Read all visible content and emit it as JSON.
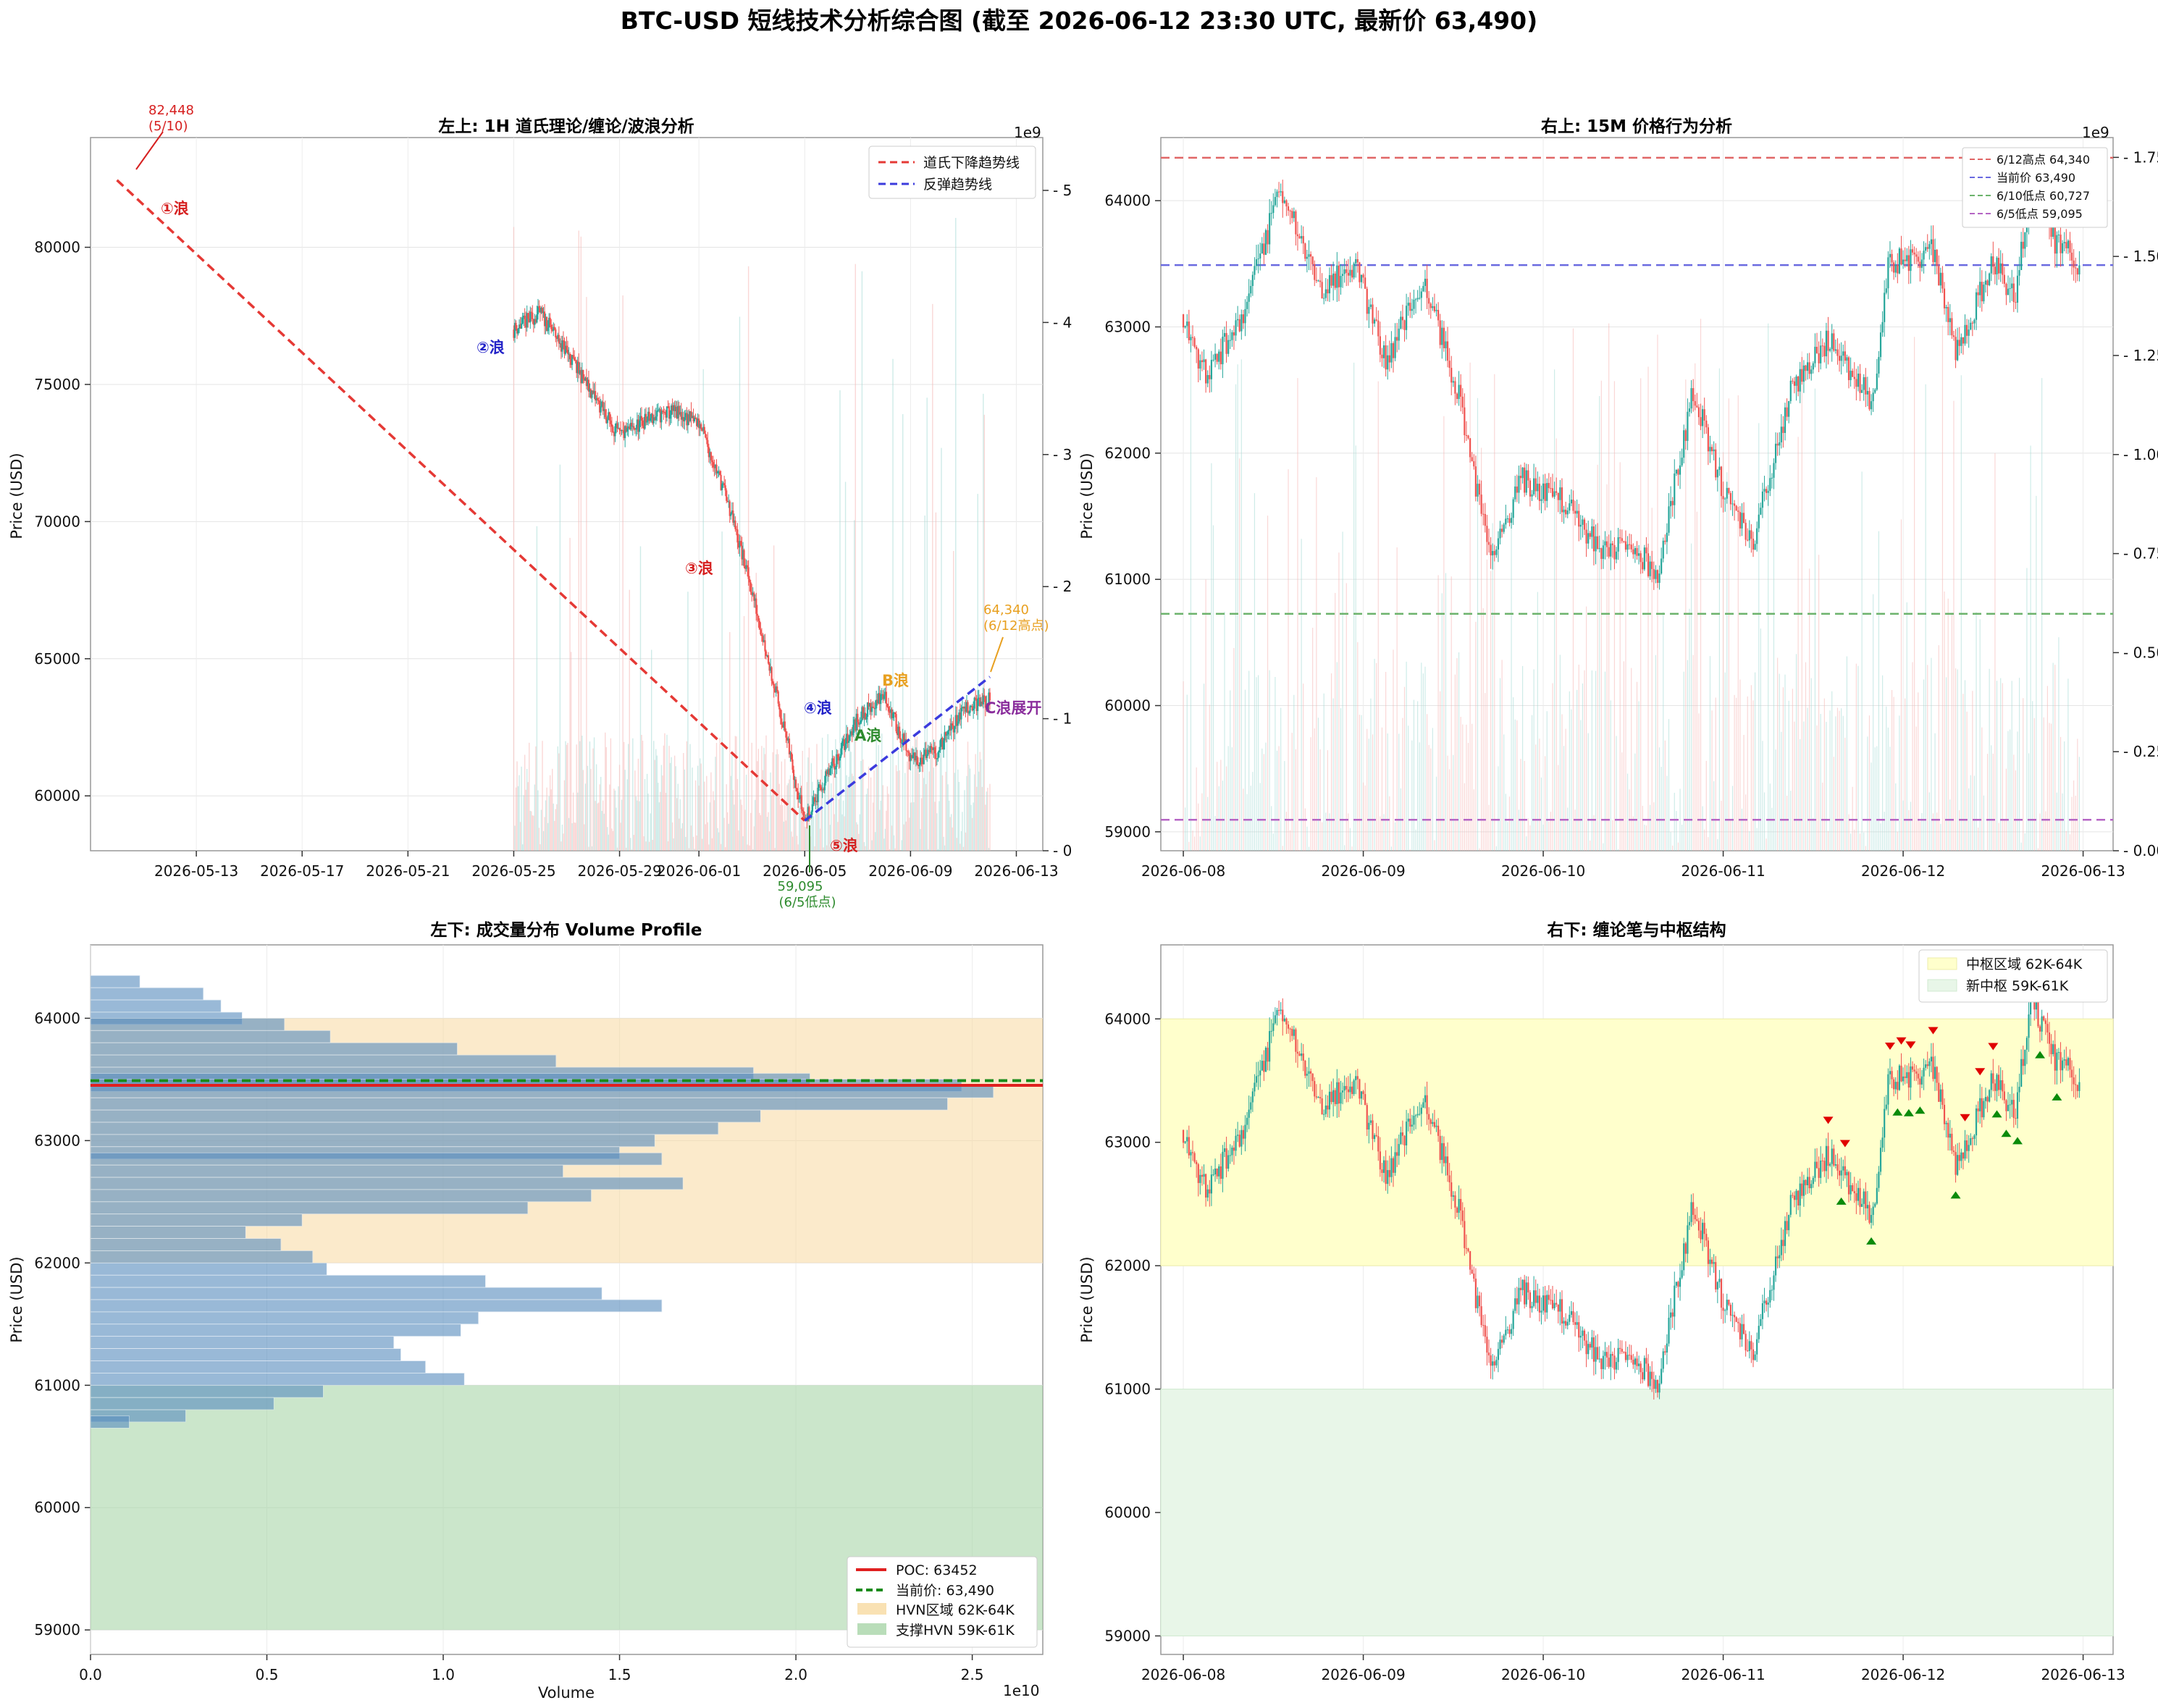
{
  "title": "BTC-USD 短线技术分析综合图 (截至 2026-06-12 23:30 UTC, 最新价 63,490)",
  "colors": {
    "up": "#26a69a",
    "down": "#ef5350",
    "red": "#e53935",
    "blue": "#3b3bdd",
    "green": "#2e8b2e",
    "orange": "#e8a020",
    "purple": "#8a2d9c"
  },
  "chart_data": [
    {
      "id": "top-left",
      "type": "candlestick",
      "title": "左上: 1H 道氏理论/缠论/波浪分析",
      "ylabel": "Price (USD)",
      "ylim": [
        58000,
        84000
      ],
      "y_ticks": [
        "60000",
        "65000",
        "70000",
        "75000",
        "80000"
      ],
      "x_ticks": [
        "2026-05-13",
        "2026-05-17",
        "2026-05-21",
        "2026-05-25",
        "2026-05-29",
        "2026-06-01",
        "2026-06-05",
        "2026-06-09",
        "2026-06-13"
      ],
      "volume_axis": {
        "label": "1e9",
        "ticks": [
          "0",
          "1",
          "2",
          "3",
          "4",
          "5"
        ],
        "ylim": [
          0,
          5.4
        ]
      },
      "price_path": [
        [
          "2026-05-25",
          77000
        ],
        [
          "2026-05-26",
          77600
        ],
        [
          "2026-05-27",
          76200
        ],
        [
          "2026-05-28",
          74600
        ],
        [
          "2026-05-29",
          73100
        ],
        [
          "2026-05-30",
          73700
        ],
        [
          "2026-05-31",
          74000
        ],
        [
          "2026-06-01",
          73600
        ],
        [
          "2026-06-02",
          71000
        ],
        [
          "2026-06-03",
          67500
        ],
        [
          "2026-06-04",
          63400
        ],
        [
          "2026-06-05",
          59095
        ],
        [
          "2026-06-06",
          61000
        ],
        [
          "2026-06-07",
          62800
        ],
        [
          "2026-06-08",
          63700
        ],
        [
          "2026-06-09",
          61300
        ],
        [
          "2026-06-10",
          61600
        ],
        [
          "2026-06-11",
          63200
        ],
        [
          "2026-06-12",
          63490
        ]
      ],
      "trendlines": [
        {
          "name": "道氏下降趋势线",
          "from": [
            "2026-05-10",
            82448
          ],
          "to": [
            "2026-06-05",
            59095
          ]
        },
        {
          "name": "反弹趋势线",
          "from": [
            "2026-06-05",
            59095
          ],
          "to": [
            "2026-06-12",
            64340
          ]
        }
      ],
      "wave_labels": [
        {
          "text": "①浪",
          "x": "2026-05-11",
          "y": 81300
        },
        {
          "text": "②浪",
          "x": "2026-05-24",
          "y": 76200
        },
        {
          "text": "③浪",
          "x": "2026-06-01",
          "y": 68200
        },
        {
          "text": "④浪",
          "x": "2026-06-05",
          "y": 63200
        },
        {
          "text": "⑤浪",
          "x": "2026-06-06",
          "y": 58200
        },
        {
          "text": "A浪",
          "x": "2026-06-07",
          "y": 62200
        },
        {
          "text": "B浪",
          "x": "2026-06-08",
          "y": 64200
        },
        {
          "text": "C浪展开",
          "x": "2026-06-12",
          "y": 63200
        }
      ],
      "annotations": [
        {
          "line1": "82,448",
          "line2": "(5/10)"
        },
        {
          "line1": "59,095",
          "line2": "(6/5低点)"
        },
        {
          "line1": "64,340",
          "line2": "(6/12高点)"
        }
      ],
      "legend_position": "top-right"
    },
    {
      "id": "top-right",
      "type": "candlestick",
      "title": "右上: 15M 价格行为分析",
      "ylabel": "Price (USD)",
      "ylim": [
        58850,
        64500
      ],
      "y_ticks": [
        "59000",
        "60000",
        "61000",
        "62000",
        "63000",
        "64000"
      ],
      "x_ticks": [
        "2026-06-08",
        "2026-06-09",
        "2026-06-10",
        "2026-06-11",
        "2026-06-12",
        "2026-06-13"
      ],
      "volume_axis": {
        "label": "1e9",
        "ticks": [
          "0.00",
          "0.25",
          "0.50",
          "0.75",
          "1.00",
          "1.25",
          "1.50",
          "1.75"
        ],
        "ylim": [
          0,
          1.8
        ]
      },
      "price_path": [
        [
          "2026-06-08 00:00",
          63100
        ],
        [
          "2026-06-08 03:00",
          62600
        ],
        [
          "2026-06-08 08:00",
          63100
        ],
        [
          "2026-06-08 13:00",
          64100
        ],
        [
          "2026-06-08 18:00",
          63300
        ],
        [
          "2026-06-08 23:00",
          63500
        ],
        [
          "2026-06-09 03:00",
          62700
        ],
        [
          "2026-06-09 08:00",
          63400
        ],
        [
          "2026-06-09 13:00",
          62400
        ],
        [
          "2026-06-09 17:00",
          61100
        ],
        [
          "2026-06-09 21:00",
          61800
        ],
        [
          "2026-06-10 03:00",
          61600
        ],
        [
          "2026-06-10 08:00",
          61200
        ],
        [
          "2026-06-10 12:00",
          61300
        ],
        [
          "2026-06-10 15:00",
          61000
        ],
        [
          "2026-06-10 20:00",
          62500
        ],
        [
          "2026-06-11 00:00",
          61700
        ],
        [
          "2026-06-11 04:00",
          61300
        ],
        [
          "2026-06-11 09:00",
          62500
        ],
        [
          "2026-06-11 14:00",
          62900
        ],
        [
          "2026-06-11 20:00",
          62400
        ],
        [
          "2026-06-11 22:00",
          63500
        ],
        [
          "2026-06-12 04:00",
          63600
        ],
        [
          "2026-06-12 07:00",
          62800
        ],
        [
          "2026-06-12 12:00",
          63500
        ],
        [
          "2026-06-12 15:00",
          63200
        ],
        [
          "2026-06-12 17:00",
          64200
        ],
        [
          "2026-06-12 20:00",
          63700
        ],
        [
          "2026-06-12 23:30",
          63490
        ]
      ],
      "hlines": [
        {
          "name": "6/12高点 64,340",
          "value": 64340,
          "color": "#e06666"
        },
        {
          "name": "当前价 63,490",
          "value": 63490,
          "color": "#6a6ae0"
        },
        {
          "name": "6/10低点 60,727",
          "value": 60727,
          "color": "#6cb36c"
        },
        {
          "name": "6/5低点 59,095",
          "value": 59095,
          "color": "#b565c4"
        }
      ],
      "legend_position": "top-right"
    },
    {
      "id": "bottom-left",
      "type": "volume-profile",
      "title": "左下: 成交量分布 Volume Profile",
      "ylabel": "Price (USD)",
      "xlabel": "Volume",
      "x_scale_label": "1e10",
      "x_ticks": [
        "0.0",
        "0.5",
        "1.0",
        "1.5",
        "2.0",
        "2.5"
      ],
      "y_ticks": [
        "59000",
        "60000",
        "61000",
        "62000",
        "63000",
        "64000"
      ],
      "ylim": [
        58800,
        64600
      ],
      "xlim": [
        0,
        2.7
      ],
      "profile": [
        {
          "price": 64300,
          "volume": 0.14
        },
        {
          "price": 64200,
          "volume": 0.32
        },
        {
          "price": 64100,
          "volume": 0.37
        },
        {
          "price": 64000,
          "volume": 0.43
        },
        {
          "price": 63950,
          "volume": 0.55
        },
        {
          "price": 63850,
          "volume": 0.68
        },
        {
          "price": 63750,
          "volume": 1.04
        },
        {
          "price": 63650,
          "volume": 1.32
        },
        {
          "price": 63550,
          "volume": 1.88
        },
        {
          "price": 63500,
          "volume": 2.04
        },
        {
          "price": 63452,
          "volume": 2.47
        },
        {
          "price": 63400,
          "volume": 2.56
        },
        {
          "price": 63300,
          "volume": 2.43
        },
        {
          "price": 63200,
          "volume": 1.9
        },
        {
          "price": 63100,
          "volume": 1.78
        },
        {
          "price": 63000,
          "volume": 1.6
        },
        {
          "price": 62900,
          "volume": 1.5
        },
        {
          "price": 62850,
          "volume": 1.62
        },
        {
          "price": 62750,
          "volume": 1.34
        },
        {
          "price": 62650,
          "volume": 1.68
        },
        {
          "price": 62550,
          "volume": 1.42
        },
        {
          "price": 62450,
          "volume": 1.24
        },
        {
          "price": 62350,
          "volume": 0.6
        },
        {
          "price": 62250,
          "volume": 0.44
        },
        {
          "price": 62150,
          "volume": 0.54
        },
        {
          "price": 62050,
          "volume": 0.63
        },
        {
          "price": 61950,
          "volume": 0.67
        },
        {
          "price": 61850,
          "volume": 1.12
        },
        {
          "price": 61750,
          "volume": 1.45
        },
        {
          "price": 61650,
          "volume": 1.62
        },
        {
          "price": 61550,
          "volume": 1.1
        },
        {
          "price": 61450,
          "volume": 1.05
        },
        {
          "price": 61350,
          "volume": 0.86
        },
        {
          "price": 61250,
          "volume": 0.88
        },
        {
          "price": 61150,
          "volume": 0.95
        },
        {
          "price": 61050,
          "volume": 1.06
        },
        {
          "price": 60950,
          "volume": 0.66
        },
        {
          "price": 60850,
          "volume": 0.52
        },
        {
          "price": 60750,
          "volume": 0.27
        },
        {
          "price": 60700,
          "volume": 0.11
        }
      ],
      "poc": 63452,
      "current_price": 63490,
      "zones": [
        {
          "name": "HVN区域 62K-64K",
          "from": 62000,
          "to": 64000,
          "color": "#f7d9a0"
        },
        {
          "name": "支撑HVN 59K-61K",
          "from": 59000,
          "to": 61000,
          "color": "#a8d5a8"
        }
      ],
      "legend": [
        "POC: 63452",
        "当前价: 63,490",
        "HVN区域 62K-64K",
        "支撑HVN 59K-61K"
      ],
      "legend_position": "lower-right"
    },
    {
      "id": "bottom-right",
      "type": "candlestick",
      "title": "右下: 缠论笔与中枢结构",
      "ylabel": "Price (USD)",
      "ylim": [
        58850,
        64600
      ],
      "y_ticks": [
        "59000",
        "60000",
        "61000",
        "62000",
        "63000",
        "64000"
      ],
      "x_ticks": [
        "2026-06-08",
        "2026-06-09",
        "2026-06-10",
        "2026-06-11",
        "2026-06-12",
        "2026-06-13"
      ],
      "zones": [
        {
          "name": "中枢区域 62K-64K",
          "from": 62000,
          "to": 64000,
          "color": "#ffffcc"
        },
        {
          "name": "新中枢 59K-61K",
          "from": 59000,
          "to": 61000,
          "color": "#e8f6e8"
        }
      ],
      "fractal_markers": "red ▼ top fractals / green ▲ bottom fractals, 2026-06-11 to 2026-06-12",
      "legend_position": "top-right"
    }
  ]
}
